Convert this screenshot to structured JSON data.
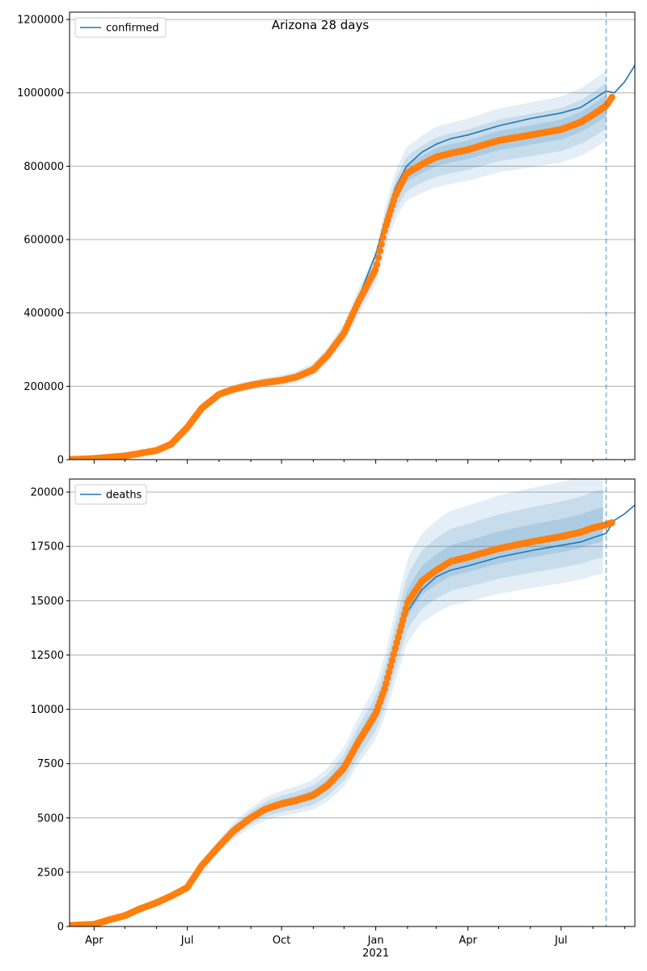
{
  "figure": {
    "title": "Arizona 28 days"
  },
  "colors": {
    "model_line": "#1f77b4",
    "band": "#1f77b4",
    "observed": "#ff7f0e",
    "grid": "#b0b0b0",
    "vline": "#1f77b4"
  },
  "chart_data": [
    {
      "type": "line",
      "title": "Arizona 28 days",
      "legend": {
        "position": "top-left",
        "entries": [
          "confirmed"
        ]
      },
      "xlabel": "",
      "ylabel": "",
      "x_type": "date",
      "xlim": [
        "2020-03-08",
        "2021-09-11"
      ],
      "ylim": [
        0,
        1220000
      ],
      "yticks": [
        0,
        200000,
        400000,
        600000,
        800000,
        1000000,
        1200000
      ],
      "ytick_labels": [
        "0",
        "200000",
        "400000",
        "600000",
        "800000",
        "1000000",
        "1200000"
      ],
      "grid": "y",
      "vline": "2021-08-14",
      "series": [
        {
          "name": "confirmed",
          "kind": "model",
          "points": [
            [
              "2020-03-08",
              0
            ],
            [
              "2020-04-01",
              3000
            ],
            [
              "2020-05-01",
              10000
            ],
            [
              "2020-06-01",
              25000
            ],
            [
              "2020-06-15",
              45000
            ],
            [
              "2020-07-01",
              90000
            ],
            [
              "2020-07-15",
              150000
            ],
            [
              "2020-08-01",
              185000
            ],
            [
              "2020-08-15",
              195000
            ],
            [
              "2020-09-01",
              205000
            ],
            [
              "2020-09-15",
              210000
            ],
            [
              "2020-10-01",
              216000
            ],
            [
              "2020-10-15",
              225000
            ],
            [
              "2020-11-01",
              245000
            ],
            [
              "2020-11-15",
              290000
            ],
            [
              "2020-12-01",
              355000
            ],
            [
              "2020-12-15",
              440000
            ],
            [
              "2021-01-01",
              560000
            ],
            [
              "2021-01-10",
              650000
            ],
            [
              "2021-01-20",
              740000
            ],
            [
              "2021-01-31",
              800000
            ],
            [
              "2021-02-15",
              838000
            ],
            [
              "2021-03-01",
              860000
            ],
            [
              "2021-03-15",
              875000
            ],
            [
              "2021-04-01",
              885000
            ],
            [
              "2021-05-01",
              910000
            ],
            [
              "2021-06-01",
              930000
            ],
            [
              "2021-07-01",
              945000
            ],
            [
              "2021-07-20",
              960000
            ],
            [
              "2021-08-14",
              1005000
            ],
            [
              "2021-08-22",
              1000000
            ],
            [
              "2021-09-01",
              1030000
            ],
            [
              "2021-09-11",
              1075000
            ]
          ]
        },
        {
          "name": "",
          "kind": "band",
          "levels": [
            {
              "opacity": 0.12,
              "upper": [
                1.03,
                1.08,
                1.1,
                1.1
              ],
              "lower": [
                0.97,
                0.92,
                0.9,
                0.9
              ]
            },
            {
              "opacity": 0.14,
              "upper": [
                1.02,
                1.05,
                1.065,
                1.065
              ],
              "lower": [
                0.98,
                0.95,
                0.935,
                0.935
              ]
            },
            {
              "opacity": 0.16,
              "upper": [
                1.01,
                1.025,
                1.03,
                1.03
              ],
              "lower": [
                0.99,
                0.975,
                0.97,
                0.97
              ]
            }
          ]
        },
        {
          "name": "",
          "kind": "observed",
          "points": [
            [
              "2020-03-08",
              0
            ],
            [
              "2020-04-01",
              3000
            ],
            [
              "2020-05-01",
              10000
            ],
            [
              "2020-06-01",
              25000
            ],
            [
              "2020-06-15",
              42000
            ],
            [
              "2020-07-01",
              88000
            ],
            [
              "2020-07-15",
              140000
            ],
            [
              "2020-08-01",
              178000
            ],
            [
              "2020-08-15",
              192000
            ],
            [
              "2020-09-01",
              203000
            ],
            [
              "2020-09-15",
              210000
            ],
            [
              "2020-10-01",
              216000
            ],
            [
              "2020-10-15",
              225000
            ],
            [
              "2020-11-01",
              245000
            ],
            [
              "2020-11-15",
              285000
            ],
            [
              "2020-12-01",
              345000
            ],
            [
              "2020-12-15",
              430000
            ],
            [
              "2021-01-01",
              520000
            ],
            [
              "2021-01-10",
              630000
            ],
            [
              "2021-01-20",
              720000
            ],
            [
              "2021-01-31",
              780000
            ],
            [
              "2021-02-15",
              805000
            ],
            [
              "2021-03-01",
              825000
            ],
            [
              "2021-03-15",
              835000
            ],
            [
              "2021-04-01",
              845000
            ],
            [
              "2021-05-01",
              870000
            ],
            [
              "2021-06-01",
              885000
            ],
            [
              "2021-07-01",
              900000
            ],
            [
              "2021-07-20",
              920000
            ],
            [
              "2021-08-01",
              940000
            ],
            [
              "2021-08-14",
              965000
            ],
            [
              "2021-08-20",
              990000
            ]
          ]
        }
      ]
    },
    {
      "type": "line",
      "title": "",
      "legend": {
        "position": "top-left",
        "entries": [
          "deaths"
        ]
      },
      "xlabel": "",
      "ylabel": "",
      "x_type": "date",
      "xlim": [
        "2020-03-08",
        "2021-09-11"
      ],
      "ylim": [
        0,
        20600
      ],
      "yticks": [
        0,
        2500,
        5000,
        7500,
        10000,
        12500,
        15000,
        17500,
        20000
      ],
      "ytick_labels": [
        "0",
        "2500",
        "5000",
        "7500",
        "10000",
        "12500",
        "15000",
        "17500",
        "20000"
      ],
      "xticks": [
        "2020-04-01",
        "2020-07-01",
        "2020-10-01",
        "2021-01-01",
        "2021-04-01",
        "2021-07-01"
      ],
      "xtick_labels": [
        "Apr",
        "Jul",
        "Oct",
        "Jan",
        "Apr",
        "Jul"
      ],
      "xtick_sublabel": "2021",
      "grid": "y",
      "vline": "2021-08-14",
      "series": [
        {
          "name": "deaths",
          "kind": "model",
          "points": [
            [
              "2021-01-20",
              13000
            ],
            [
              "2021-02-01",
              14500
            ],
            [
              "2021-02-15",
              15500
            ],
            [
              "2021-03-01",
              16100
            ],
            [
              "2021-03-15",
              16400
            ],
            [
              "2021-04-01",
              16600
            ],
            [
              "2021-05-01",
              17000
            ],
            [
              "2021-06-01",
              17300
            ],
            [
              "2021-07-01",
              17550
            ],
            [
              "2021-07-20",
              17700
            ],
            [
              "2021-08-01",
              17900
            ],
            [
              "2021-08-14",
              18100
            ],
            [
              "2021-08-22",
              18700
            ],
            [
              "2021-09-01",
              19000
            ],
            [
              "2021-09-11",
              19400
            ]
          ]
        },
        {
          "name": "",
          "kind": "band",
          "levels": [
            {
              "opacity": 0.12,
              "upper": [
                1.06,
                1.13,
                1.14,
                1.14
              ],
              "lower": [
                0.94,
                0.88,
                0.88,
                0.88
              ]
            },
            {
              "opacity": 0.14,
              "upper": [
                1.04,
                1.08,
                1.09,
                1.09
              ],
              "lower": [
                0.96,
                0.92,
                0.92,
                0.92
              ]
            },
            {
              "opacity": 0.16,
              "upper": [
                1.02,
                1.04,
                1.045,
                1.045
              ],
              "lower": [
                0.98,
                0.96,
                0.96,
                0.96
              ]
            }
          ]
        },
        {
          "name": "",
          "kind": "observed",
          "points": [
            [
              "2020-03-08",
              50
            ],
            [
              "2020-04-01",
              100
            ],
            [
              "2020-04-15",
              300
            ],
            [
              "2020-05-01",
              500
            ],
            [
              "2020-05-15",
              800
            ],
            [
              "2020-06-01",
              1100
            ],
            [
              "2020-06-15",
              1400
            ],
            [
              "2020-07-01",
              1800
            ],
            [
              "2020-07-15",
              2800
            ],
            [
              "2020-08-01",
              3700
            ],
            [
              "2020-08-15",
              4400
            ],
            [
              "2020-09-01",
              5000
            ],
            [
              "2020-09-15",
              5400
            ],
            [
              "2020-10-01",
              5650
            ],
            [
              "2020-10-15",
              5800
            ],
            [
              "2020-11-01",
              6050
            ],
            [
              "2020-11-15",
              6500
            ],
            [
              "2020-12-01",
              7300
            ],
            [
              "2020-12-15",
              8500
            ],
            [
              "2021-01-01",
              9800
            ],
            [
              "2021-01-10",
              11000
            ],
            [
              "2021-01-20",
              12800
            ],
            [
              "2021-02-01",
              14900
            ],
            [
              "2021-02-15",
              15900
            ],
            [
              "2021-03-01",
              16400
            ],
            [
              "2021-03-15",
              16800
            ],
            [
              "2021-04-01",
              17000
            ],
            [
              "2021-05-01",
              17400
            ],
            [
              "2021-06-01",
              17700
            ],
            [
              "2021-07-01",
              17950
            ],
            [
              "2021-07-20",
              18150
            ],
            [
              "2021-08-01",
              18350
            ],
            [
              "2021-08-14",
              18500
            ],
            [
              "2021-08-20",
              18600
            ]
          ]
        }
      ]
    }
  ]
}
